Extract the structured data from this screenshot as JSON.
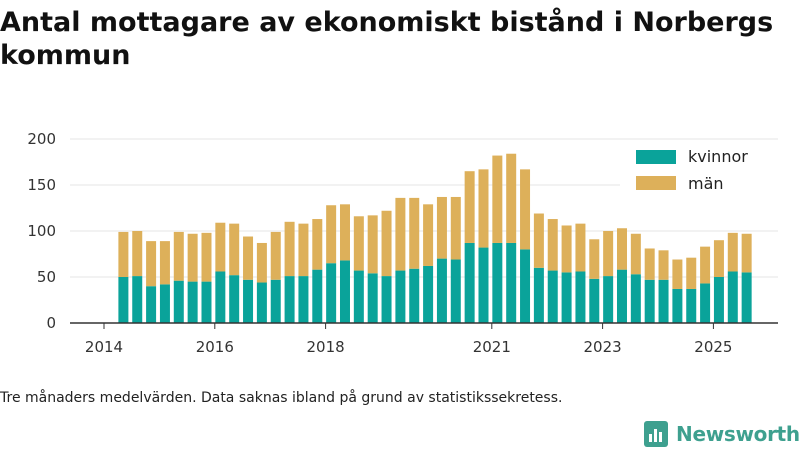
{
  "title": "Antal mottagare av ekonomiskt bistånd i Norbergs kommun",
  "note": "Tre månaders medelvärden. Data saknas ibland på grund av statistikssekretess.",
  "brand": "Newsworthy",
  "colors": {
    "kvinnor": "#0aa39a",
    "man": "#ddb05a",
    "axis": "#333333",
    "grid": "#e6e6e6"
  },
  "chart_data": {
    "type": "bar",
    "stacked": true,
    "title": "Antal mottagare av ekonomiskt bistånd i Norbergs kommun",
    "xlabel": "",
    "ylabel": "",
    "ylim": [
      0,
      200
    ],
    "yticks": [
      0,
      50,
      100,
      150,
      200
    ],
    "xticks": [
      {
        "label": "2014",
        "t": 2014.0
      },
      {
        "label": "2016",
        "t": 2016.0
      },
      {
        "label": "2018",
        "t": 2018.0
      },
      {
        "label": "2021",
        "t": 2021.0
      },
      {
        "label": "2023",
        "t": 2023.0
      },
      {
        "label": "2025",
        "t": 2025.0
      }
    ],
    "legend": [
      "kvinnor",
      "män"
    ],
    "legend_position": "top-right",
    "x": [
      2014.35,
      2014.6,
      2014.85,
      2015.1,
      2015.35,
      2015.6,
      2015.85,
      2016.1,
      2016.35,
      2016.6,
      2016.85,
      2017.1,
      2017.35,
      2017.6,
      2017.85,
      2018.1,
      2018.35,
      2018.6,
      2018.85,
      2019.1,
      2019.35,
      2019.6,
      2019.85,
      2020.1,
      2020.35,
      2020.6,
      2020.85,
      2021.1,
      2021.35,
      2021.6,
      2021.85,
      2022.1,
      2022.35,
      2022.6,
      2022.85,
      2023.1,
      2023.35,
      2023.6,
      2023.85,
      2024.1,
      2024.35,
      2024.6,
      2024.85,
      2025.1,
      2025.35,
      2025.6
    ],
    "series": [
      {
        "name": "kvinnor",
        "values": [
          50,
          51,
          40,
          42,
          46,
          45,
          45,
          56,
          52,
          47,
          44,
          47,
          51,
          51,
          58,
          65,
          68,
          57,
          54,
          51,
          57,
          59,
          62,
          70,
          69,
          87,
          82,
          87,
          87,
          80,
          60,
          57,
          55,
          56,
          48,
          51,
          58,
          53,
          47,
          47,
          37,
          37,
          43,
          50,
          56,
          55
        ]
      },
      {
        "name": "män",
        "values": [
          49,
          49,
          49,
          47,
          53,
          52,
          53,
          53,
          56,
          47,
          43,
          52,
          59,
          57,
          55,
          63,
          61,
          59,
          63,
          71,
          79,
          77,
          67,
          67,
          68,
          78,
          85,
          95,
          97,
          87,
          59,
          56,
          51,
          52,
          43,
          49,
          45,
          44,
          34,
          32,
          32,
          34,
          40,
          40,
          42,
          42
        ]
      }
    ]
  }
}
